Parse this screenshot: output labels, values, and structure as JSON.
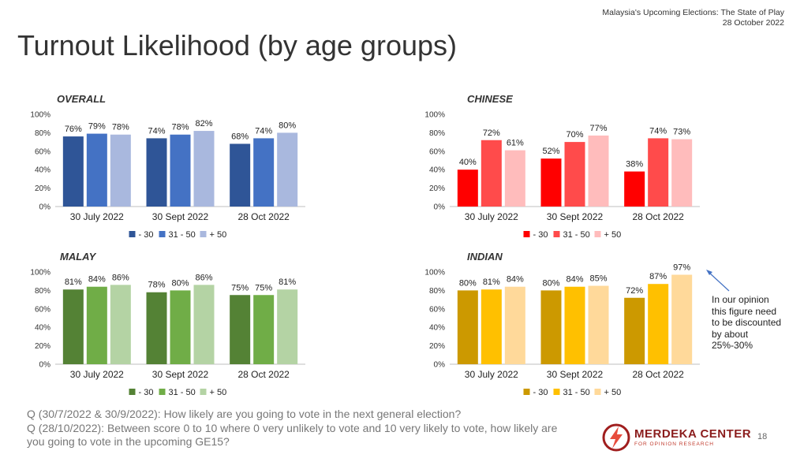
{
  "header": {
    "title": "Turnout Likelihood (by age groups)",
    "subtitle_line1": "Malaysia's Upcoming Elections: The State of Play",
    "subtitle_line2": "28 October 2022"
  },
  "chart_data": [
    {
      "id": "overall",
      "type": "bar",
      "title": "OVERALL",
      "categories": [
        "30 July 2022",
        "30 Sept 2022",
        "28 Oct 2022"
      ],
      "series": [
        {
          "name": "- 30",
          "color": "#2f5597",
          "values": [
            76,
            74,
            68
          ]
        },
        {
          "name": "31 - 50",
          "color": "#4472c4",
          "values": [
            79,
            78,
            74
          ]
        },
        {
          "name": "+ 50",
          "color": "#a9b8de",
          "values": [
            78,
            82,
            80
          ]
        }
      ],
      "yticks": [
        "0%",
        "20%",
        "40%",
        "60%",
        "80%",
        "100%"
      ],
      "ylim": [
        0,
        100
      ],
      "legend": "bottom",
      "grid": false
    },
    {
      "id": "chinese",
      "type": "bar",
      "title": "CHINESE",
      "categories": [
        "30 July 2022",
        "30 Sept 2022",
        "28 Oct 2022"
      ],
      "series": [
        {
          "name": "- 30",
          "color": "#ff0000",
          "values": [
            40,
            52,
            38
          ]
        },
        {
          "name": "31 - 50",
          "color": "#ff4b4b",
          "values": [
            72,
            70,
            74
          ]
        },
        {
          "name": "+ 50",
          "color": "#ffbcbc",
          "values": [
            61,
            77,
            73
          ]
        }
      ],
      "yticks": [
        "0%",
        "20%",
        "40%",
        "60%",
        "80%",
        "100%"
      ],
      "ylim": [
        0,
        100
      ],
      "legend": "bottom",
      "grid": false
    },
    {
      "id": "malay",
      "type": "bar",
      "title": "MALAY",
      "categories": [
        "30 July 2022",
        "30 Sept 2022",
        "28 Oct 2022"
      ],
      "series": [
        {
          "name": "- 30",
          "color": "#548235",
          "values": [
            81,
            78,
            75
          ]
        },
        {
          "name": "31 - 50",
          "color": "#70ad47",
          "values": [
            84,
            80,
            75
          ]
        },
        {
          "name": "+ 50",
          "color": "#b4d3a4",
          "values": [
            86,
            86,
            81
          ]
        }
      ],
      "yticks": [
        "0%",
        "20%",
        "40%",
        "60%",
        "80%",
        "100%"
      ],
      "ylim": [
        0,
        100
      ],
      "legend": "bottom",
      "grid": false
    },
    {
      "id": "indian",
      "type": "bar",
      "title": "INDIAN",
      "categories": [
        "30 July 2022",
        "30 Sept 2022",
        "28 Oct 2022"
      ],
      "series": [
        {
          "name": "- 30",
          "color": "#cc9900",
          "values": [
            80,
            80,
            72
          ]
        },
        {
          "name": "31 - 50",
          "color": "#ffc000",
          "values": [
            81,
            84,
            87
          ]
        },
        {
          "name": "+ 50",
          "color": "#ffd99a",
          "values": [
            84,
            85,
            97
          ]
        }
      ],
      "yticks": [
        "0%",
        "20%",
        "40%",
        "60%",
        "80%",
        "100%"
      ],
      "ylim": [
        0,
        100
      ],
      "legend": "bottom",
      "grid": false
    }
  ],
  "callout": {
    "text": "In our opinion this figure need to be discounted by about 25%-30%",
    "arrow_color": "#4472c4"
  },
  "footer": {
    "q1": "Q (30/7/2022 & 30/9/2022): How likely are you going to vote in the next general election?",
    "q2": "Q (28/10/2022): Between score 0 to 10 where 0 very unlikely to vote and 10 very likely to vote, how likely are",
    "q3": "you going to vote in the upcoming GE15?",
    "text_color": "#777777"
  },
  "logo": {
    "name": "MERDEKA CENTER",
    "subtitle": "FOR OPINION RESEARCH",
    "icon": "lightning-bolt-circle-icon"
  },
  "page_number": "18"
}
